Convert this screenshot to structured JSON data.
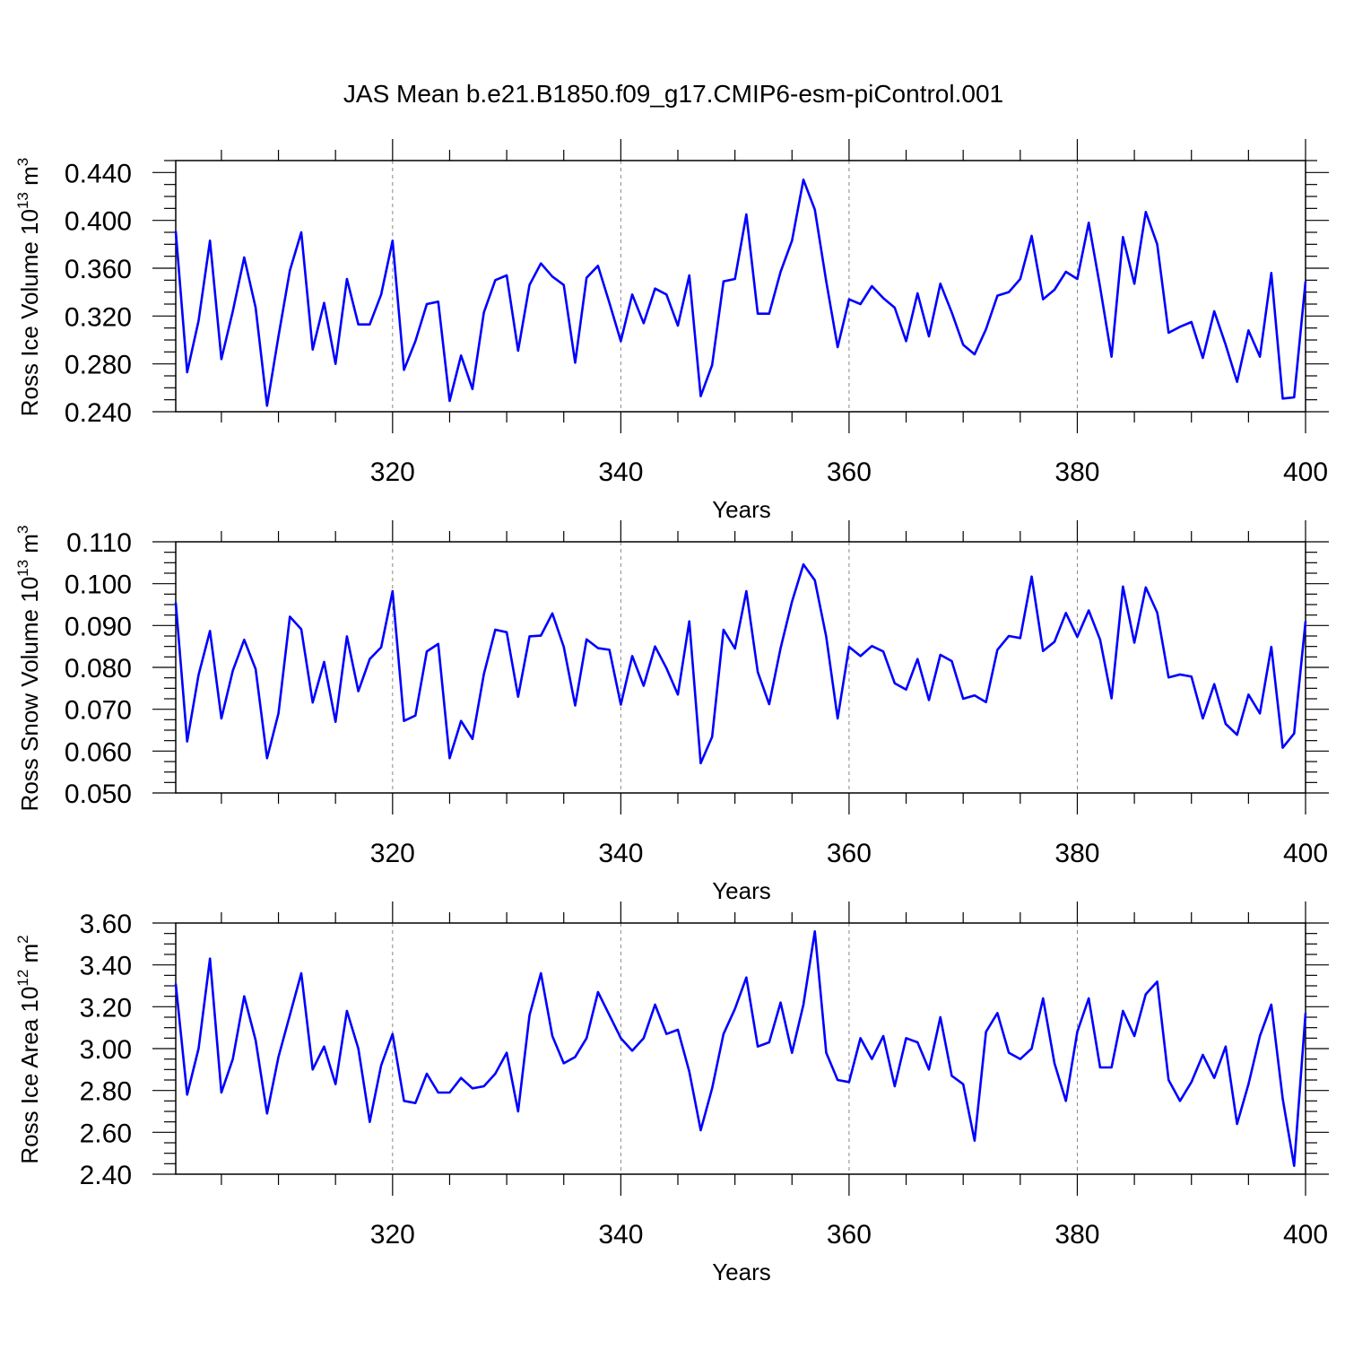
{
  "title": "JAS Mean b.e21.B1850.f09_g17.CMIP6-esm-piControl.001",
  "line_color": "#0000ff",
  "chart_data": [
    {
      "type": "line",
      "name": "ross-ice-volume",
      "ylabel": {
        "main": "Ross Ice Volume 10",
        "exp": "13",
        "unit": "m",
        "unit_exp": "3"
      },
      "xlabel": "Years",
      "xlim": [
        301,
        400
      ],
      "ylim": [
        0.24,
        0.45
      ],
      "yticks": [
        "0.240",
        "0.280",
        "0.320",
        "0.360",
        "0.400",
        "0.440"
      ],
      "xticks": [
        "320",
        "340",
        "360",
        "380",
        "400"
      ],
      "x_start": 301,
      "values": [
        0.391,
        0.273,
        0.316,
        0.383,
        0.284,
        0.324,
        0.369,
        0.327,
        0.245,
        0.303,
        0.358,
        0.39,
        0.292,
        0.331,
        0.28,
        0.351,
        0.313,
        0.313,
        0.338,
        0.383,
        0.275,
        0.299,
        0.33,
        0.332,
        0.249,
        0.287,
        0.259,
        0.323,
        0.35,
        0.354,
        0.291,
        0.346,
        0.364,
        0.353,
        0.346,
        0.281,
        0.352,
        0.362,
        0.331,
        0.299,
        0.338,
        0.314,
        0.343,
        0.338,
        0.312,
        0.354,
        0.253,
        0.279,
        0.349,
        0.351,
        0.405,
        0.322,
        0.322,
        0.357,
        0.383,
        0.434,
        0.409,
        0.349,
        0.294,
        0.334,
        0.33,
        0.345,
        0.335,
        0.327,
        0.299,
        0.339,
        0.303,
        0.347,
        0.323,
        0.296,
        0.288,
        0.309,
        0.337,
        0.34,
        0.351,
        0.387,
        0.334,
        0.342,
        0.357,
        0.351,
        0.398,
        0.344,
        0.286,
        0.386,
        0.347,
        0.407,
        0.38,
        0.306,
        0.311,
        0.315,
        0.285,
        0.324,
        0.296,
        0.265,
        0.308,
        0.286,
        0.356,
        0.251,
        0.252,
        0.349
      ]
    },
    {
      "type": "line",
      "name": "ross-snow-volume",
      "ylabel": {
        "main": "Ross Snow Volume 10",
        "exp": "13",
        "unit": "m",
        "unit_exp": "3"
      },
      "xlabel": "Years",
      "xlim": [
        301,
        400
      ],
      "ylim": [
        0.05,
        0.11
      ],
      "yticks": [
        "0.050",
        "0.060",
        "0.070",
        "0.080",
        "0.090",
        "0.100",
        "0.110"
      ],
      "xticks": [
        "320",
        "340",
        "360",
        "380",
        "400"
      ],
      "x_start": 301,
      "values": [
        0.0955,
        0.0623,
        0.0782,
        0.0887,
        0.0678,
        0.0792,
        0.0866,
        0.0796,
        0.0583,
        0.069,
        0.0921,
        0.0891,
        0.0716,
        0.0813,
        0.067,
        0.0874,
        0.0743,
        0.082,
        0.0848,
        0.0982,
        0.0672,
        0.0685,
        0.0838,
        0.0856,
        0.0583,
        0.0672,
        0.0629,
        0.0784,
        0.089,
        0.0884,
        0.073,
        0.0874,
        0.0876,
        0.0929,
        0.0849,
        0.0709,
        0.0867,
        0.0846,
        0.0842,
        0.0711,
        0.0827,
        0.0756,
        0.085,
        0.0798,
        0.0735,
        0.091,
        0.0571,
        0.0634,
        0.089,
        0.0845,
        0.0982,
        0.0789,
        0.0712,
        0.0846,
        0.0957,
        0.1046,
        0.1008,
        0.0873,
        0.0678,
        0.0849,
        0.0827,
        0.0851,
        0.0838,
        0.0762,
        0.0747,
        0.082,
        0.0722,
        0.083,
        0.0815,
        0.0725,
        0.0733,
        0.0717,
        0.0842,
        0.0875,
        0.087,
        0.1017,
        0.0839,
        0.0861,
        0.093,
        0.0873,
        0.0936,
        0.0866,
        0.0726,
        0.0993,
        0.0859,
        0.0991,
        0.0931,
        0.0776,
        0.0783,
        0.0778,
        0.0678,
        0.076,
        0.0665,
        0.0639,
        0.0735,
        0.069,
        0.0849,
        0.0608,
        0.0642,
        0.091
      ]
    },
    {
      "type": "line",
      "name": "ross-ice-area",
      "ylabel": {
        "main": "Ross Ice Area 10",
        "exp": "12",
        "unit": "m",
        "unit_exp": "2"
      },
      "xlabel": "Years",
      "xlim": [
        301,
        400
      ],
      "ylim": [
        2.4,
        3.6
      ],
      "yticks": [
        "2.40",
        "2.60",
        "2.80",
        "3.00",
        "3.20",
        "3.40",
        "3.60"
      ],
      "xticks": [
        "320",
        "340",
        "360",
        "380",
        "400"
      ],
      "x_start": 301,
      "values": [
        3.31,
        2.78,
        3.0,
        3.43,
        2.79,
        2.95,
        3.25,
        3.04,
        2.69,
        2.96,
        3.16,
        3.36,
        2.9,
        3.01,
        2.83,
        3.18,
        3.0,
        2.65,
        2.92,
        3.07,
        2.75,
        2.74,
        2.88,
        2.79,
        2.79,
        2.86,
        2.81,
        2.82,
        2.88,
        2.98,
        2.7,
        3.16,
        3.36,
        3.06,
        2.93,
        2.96,
        3.05,
        3.27,
        3.16,
        3.05,
        2.99,
        3.05,
        3.21,
        3.07,
        3.09,
        2.89,
        2.61,
        2.81,
        3.07,
        3.19,
        3.34,
        3.01,
        3.03,
        3.22,
        2.98,
        3.21,
        3.56,
        2.98,
        2.85,
        2.84,
        3.05,
        2.95,
        3.06,
        2.82,
        3.05,
        3.03,
        2.9,
        3.15,
        2.87,
        2.83,
        2.56,
        3.08,
        3.17,
        2.98,
        2.95,
        3.0,
        3.24,
        2.93,
        2.75,
        3.08,
        3.24,
        2.91,
        2.91,
        3.18,
        3.06,
        3.26,
        3.32,
        2.85,
        2.75,
        2.84,
        2.97,
        2.86,
        3.01,
        2.64,
        2.83,
        3.06,
        3.21,
        2.76,
        2.44,
        3.17
      ]
    }
  ]
}
